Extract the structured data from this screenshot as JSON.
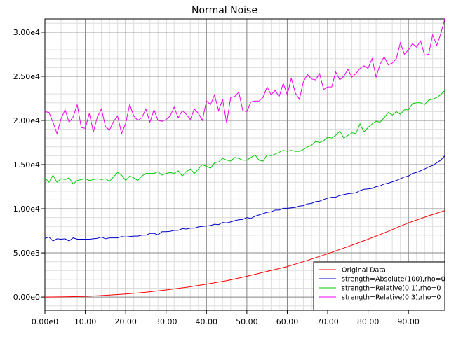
{
  "chart_data": {
    "type": "line",
    "title": "Normal Noise",
    "xlabel": "",
    "ylabel": "",
    "xlim": [
      0,
      99
    ],
    "ylim": [
      -1500,
      31500
    ],
    "grid": true,
    "x_ticks": [
      {
        "value": 0,
        "label": "0.00e0"
      },
      {
        "value": 10,
        "label": "10.00"
      },
      {
        "value": 20,
        "label": "20.00"
      },
      {
        "value": 30,
        "label": "30.00"
      },
      {
        "value": 40,
        "label": "40.00"
      },
      {
        "value": 50,
        "label": "50.00"
      },
      {
        "value": 60,
        "label": "60.00"
      },
      {
        "value": 70,
        "label": "70.00"
      },
      {
        "value": 80,
        "label": "80.00"
      },
      {
        "value": 90,
        "label": "90.00"
      }
    ],
    "y_ticks": [
      {
        "value": 0,
        "label": "0.00e0"
      },
      {
        "value": 5000,
        "label": "5.00e3"
      },
      {
        "value": 10000,
        "label": "1.00e4"
      },
      {
        "value": 15000,
        "label": "1.50e4"
      },
      {
        "value": 20000,
        "label": "2.00e4"
      },
      {
        "value": 25000,
        "label": "2.50e4"
      },
      {
        "value": 30000,
        "label": "3.00e4"
      }
    ],
    "legend_position": "bottom-right",
    "series": [
      {
        "name": "Original Data",
        "color": "#ff0000",
        "x": [
          0,
          5,
          10,
          15,
          20,
          25,
          30,
          35,
          40,
          45,
          50,
          55,
          60,
          65,
          70,
          75,
          80,
          85,
          90,
          95,
          99
        ],
        "y": [
          0,
          20,
          80,
          200,
          350,
          550,
          800,
          1100,
          1450,
          1850,
          2350,
          2900,
          3450,
          4150,
          4900,
          5700,
          6550,
          7450,
          8400,
          9200,
          9800
        ]
      },
      {
        "name": "strength=Absolute(100),rho=0",
        "color": "#0000cc",
        "x": [
          0,
          1,
          2,
          3,
          4,
          5,
          6,
          7,
          8,
          9,
          10,
          11,
          12,
          13,
          14,
          15,
          16,
          17,
          18,
          19,
          20,
          21,
          22,
          23,
          24,
          25,
          26,
          27,
          28,
          29,
          30,
          31,
          32,
          33,
          34,
          35,
          36,
          37,
          38,
          39,
          40,
          41,
          42,
          43,
          44,
          45,
          46,
          47,
          48,
          49,
          50,
          51,
          52,
          53,
          54,
          55,
          56,
          57,
          58,
          59,
          60,
          61,
          62,
          63,
          64,
          65,
          66,
          67,
          68,
          69,
          70,
          71,
          72,
          73,
          74,
          75,
          76,
          77,
          78,
          79,
          80,
          81,
          82,
          83,
          84,
          85,
          86,
          87,
          88,
          89,
          90,
          91,
          92,
          93,
          94,
          95,
          96,
          97,
          98,
          99
        ],
        "y": [
          6650,
          6800,
          6350,
          6600,
          6550,
          6600,
          6350,
          6700,
          6550,
          6550,
          6550,
          6550,
          6600,
          6650,
          6800,
          6600,
          6700,
          6700,
          6700,
          6850,
          6800,
          6850,
          6900,
          6900,
          7000,
          7000,
          7200,
          7200,
          7050,
          7400,
          7400,
          7450,
          7550,
          7550,
          7750,
          7700,
          7800,
          7800,
          7950,
          8000,
          8050,
          8100,
          8250,
          8200,
          8450,
          8400,
          8500,
          8650,
          8750,
          8800,
          9000,
          8900,
          9150,
          9300,
          9450,
          9600,
          9650,
          9850,
          9850,
          10050,
          10050,
          10100,
          10150,
          10300,
          10350,
          10550,
          10600,
          10800,
          10850,
          11050,
          11200,
          11300,
          11300,
          11500,
          11600,
          11700,
          11750,
          11800,
          12050,
          12200,
          12250,
          12300,
          12500,
          12600,
          12800,
          12900,
          13050,
          13200,
          13400,
          13600,
          13700,
          14000,
          14100,
          14300,
          14500,
          14750,
          14900,
          15200,
          15500,
          16000
        ]
      },
      {
        "name": "strength=Relative(0.1),rho=0",
        "color": "#00cc00",
        "x": [
          0,
          1,
          2,
          3,
          4,
          5,
          6,
          7,
          8,
          9,
          10,
          11,
          12,
          13,
          14,
          15,
          16,
          17,
          18,
          19,
          20,
          21,
          22,
          23,
          24,
          25,
          26,
          27,
          28,
          29,
          30,
          31,
          32,
          33,
          34,
          35,
          36,
          37,
          38,
          39,
          40,
          41,
          42,
          43,
          44,
          45,
          46,
          47,
          48,
          49,
          50,
          51,
          52,
          53,
          54,
          55,
          56,
          57,
          58,
          59,
          60,
          61,
          62,
          63,
          64,
          65,
          66,
          67,
          68,
          69,
          70,
          71,
          72,
          73,
          74,
          75,
          76,
          77,
          78,
          79,
          80,
          81,
          82,
          83,
          84,
          85,
          86,
          87,
          88,
          89,
          90,
          91,
          92,
          93,
          94,
          95,
          96,
          97,
          98,
          99
        ],
        "y": [
          13500,
          13000,
          13800,
          13000,
          13400,
          13300,
          13500,
          12800,
          13200,
          13300,
          13400,
          13200,
          13300,
          13400,
          13300,
          13400,
          13100,
          13600,
          14100,
          13800,
          13200,
          13700,
          13500,
          13200,
          13700,
          14000,
          14000,
          14000,
          14200,
          13800,
          14000,
          14100,
          14000,
          14300,
          13700,
          14200,
          14500,
          14000,
          14500,
          15000,
          14800,
          14600,
          15200,
          15300,
          15700,
          15500,
          15400,
          15800,
          15700,
          15500,
          15500,
          15800,
          16100,
          15500,
          15400,
          16100,
          16000,
          16200,
          16400,
          16600,
          16500,
          16600,
          16500,
          16500,
          16700,
          17000,
          17200,
          17600,
          17500,
          17700,
          18100,
          18000,
          18300,
          18800,
          18000,
          18300,
          18600,
          18500,
          19600,
          18700,
          19200,
          19600,
          19900,
          19800,
          20300,
          20900,
          20600,
          21000,
          20700,
          21200,
          21200,
          21900,
          22000,
          22000,
          21800,
          22300,
          22400,
          22600,
          22900,
          23400
        ]
      },
      {
        "name": "strength=Relative(0.3),rho=0",
        "color": "#ee00ee",
        "x": [
          0,
          1,
          2,
          3,
          4,
          5,
          6,
          7,
          8,
          9,
          10,
          11,
          12,
          13,
          14,
          15,
          16,
          17,
          18,
          19,
          20,
          21,
          22,
          23,
          24,
          25,
          26,
          27,
          28,
          29,
          30,
          31,
          32,
          33,
          34,
          35,
          36,
          37,
          38,
          39,
          40,
          41,
          42,
          43,
          44,
          45,
          46,
          47,
          48,
          49,
          50,
          51,
          52,
          53,
          54,
          55,
          56,
          57,
          58,
          59,
          60,
          61,
          62,
          63,
          64,
          65,
          66,
          67,
          68,
          69,
          70,
          71,
          72,
          73,
          74,
          75,
          76,
          77,
          78,
          79,
          80,
          81,
          82,
          83,
          84,
          85,
          86,
          87,
          88,
          89,
          90,
          91,
          92,
          93,
          94,
          95,
          96,
          97,
          98,
          99
        ],
        "y": [
          21000,
          20900,
          19800,
          18500,
          20200,
          21200,
          19800,
          20400,
          21800,
          19200,
          19100,
          20800,
          18700,
          20400,
          21300,
          19300,
          18900,
          19900,
          20500,
          18500,
          19700,
          21800,
          20500,
          20000,
          20300,
          21300,
          19800,
          21200,
          20000,
          19900,
          20100,
          20500,
          21500,
          20300,
          21100,
          20700,
          20100,
          21300,
          20800,
          20000,
          22200,
          21800,
          22900,
          21100,
          22400,
          19700,
          22600,
          22700,
          23200,
          21100,
          21000,
          22100,
          22200,
          22200,
          22600,
          23800,
          22900,
          23400,
          22700,
          24200,
          22900,
          24800,
          23100,
          22400,
          24400,
          25200,
          24700,
          24600,
          25300,
          23500,
          23800,
          23800,
          25500,
          24600,
          25000,
          25800,
          24900,
          25300,
          25900,
          26200,
          25900,
          27000,
          24900,
          26400,
          27200,
          26300,
          26500,
          27000,
          28800,
          27500,
          28000,
          28700,
          28300,
          29000,
          27400,
          27500,
          29700,
          28500,
          29800,
          31500
        ]
      }
    ]
  }
}
